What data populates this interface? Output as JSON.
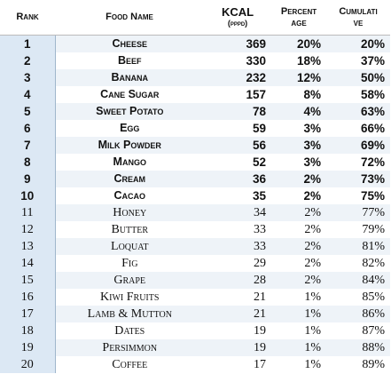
{
  "table": {
    "header": [
      [
        "Rank"
      ],
      [
        "Food Name"
      ],
      [
        "KCAL",
        "(pppd)"
      ],
      [
        "Percent",
        "age"
      ],
      [
        "Cumulati",
        "ve"
      ]
    ],
    "rows": [
      [
        "1",
        "Cheese",
        "369",
        "20%",
        "20%"
      ],
      [
        "2",
        "Beef",
        "330",
        "18%",
        "37%"
      ],
      [
        "3",
        "Banana",
        "232",
        "12%",
        "50%"
      ],
      [
        "4",
        "Cane Sugar",
        "157",
        "8%",
        "58%"
      ],
      [
        "5",
        "Sweet Potato",
        "78",
        "4%",
        "63%"
      ],
      [
        "6",
        "Egg",
        "59",
        "3%",
        "66%"
      ],
      [
        "7",
        "Milk Powder",
        "56",
        "3%",
        "69%"
      ],
      [
        "8",
        "Mango",
        "52",
        "3%",
        "72%"
      ],
      [
        "9",
        "Cream",
        "36",
        "2%",
        "73%"
      ],
      [
        "10",
        "Cacao",
        "35",
        "2%",
        "75%"
      ],
      [
        "11",
        "Honey",
        "34",
        "2%",
        "77%"
      ],
      [
        "12",
        "Butter",
        "33",
        "2%",
        "79%"
      ],
      [
        "13",
        "Loquat",
        "33",
        "2%",
        "81%"
      ],
      [
        "14",
        "Fig",
        "29",
        "2%",
        "82%"
      ],
      [
        "15",
        "Grape",
        "28",
        "2%",
        "84%"
      ],
      [
        "16",
        "Kiwi Fruits",
        "21",
        "1%",
        "85%"
      ],
      [
        "17",
        "Lamb & Mutton",
        "21",
        "1%",
        "86%"
      ],
      [
        "18",
        "Dates",
        "19",
        "1%",
        "87%"
      ],
      [
        "19",
        "Persimmon",
        "19",
        "1%",
        "88%"
      ],
      [
        "20",
        "Coffee",
        "17",
        "1%",
        "89%"
      ]
    ]
  }
}
